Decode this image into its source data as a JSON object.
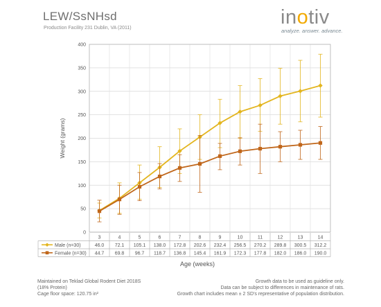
{
  "header": {
    "title": "LEW/SsNHsd",
    "subtitle": "Production Facility 231 Dublin, VA (2011)"
  },
  "logo": {
    "wordmark_prefix": "in",
    "wordmark_accent": "o",
    "wordmark_suffix": "tiv",
    "tagline": "analyze. answer. advance.",
    "accent_color": "#f2a900"
  },
  "footer": {
    "left_line1": "Maintained on Teklad Global Rodent Diet 2018S",
    "left_line2": "(18% Protein)",
    "left_line3": "Cage floor space: 120.75 in²",
    "right_line1": "Growth data to be used as guideline only.",
    "right_line2": "Data can be subject to differences in maintenance of rats.",
    "right_line3": "Growth chart includes mean ± 2 SD's representative of population distribution."
  },
  "chart_data": {
    "type": "line",
    "title": "",
    "xlabel": "Age (weeks)",
    "ylabel": "Weight (grams)",
    "ylim": [
      0,
      400
    ],
    "yticks": [
      0,
      50,
      100,
      150,
      200,
      250,
      300,
      350,
      400
    ],
    "grid": true,
    "legend": "table-below",
    "categories": [
      "3",
      "4",
      "5",
      "6",
      "7",
      "8",
      "9",
      "10",
      "11",
      "12",
      "13",
      "14"
    ],
    "series": [
      {
        "name": "Male (n=30)",
        "color": "#e3b51e",
        "marker": "diamond",
        "values": [
          46.0,
          72.1,
          105.1,
          138.0,
          172.8,
          202.6,
          232.4,
          256.5,
          270.2,
          289.8,
          300.5,
          312.2
        ],
        "labels": [
          "46.0",
          "72.1",
          "105.1",
          "138.0",
          "172.8",
          "202.6",
          "232.4",
          "256.5",
          "270.2",
          "289.8",
          "300.5",
          "312.2"
        ],
        "error_low": [
          30,
          40,
          70,
          95,
          125,
          155,
          180,
          200,
          215,
          230,
          235,
          245
        ],
        "error_high": [
          62,
          105,
          143,
          182,
          220,
          250,
          283,
          312,
          327,
          349,
          366,
          379
        ]
      },
      {
        "name": "Female (n=30)",
        "color": "#c0661a",
        "marker": "square",
        "values": [
          44.7,
          69.8,
          96.7,
          118.7,
          136.8,
          145.4,
          161.9,
          172.3,
          177.8,
          182.0,
          186.0,
          190.0
        ],
        "labels": [
          "44.7",
          "69.8",
          "96.7",
          "118.7",
          "136.8",
          "145.4",
          "161.9",
          "172.3",
          "177.8",
          "182.0",
          "186.0",
          "190.0"
        ],
        "error_low": [
          22,
          38,
          67,
          92,
          108,
          85,
          133,
          143,
          125,
          150,
          155,
          155
        ],
        "error_high": [
          68,
          100,
          127,
          146,
          165,
          206,
          189,
          201,
          230,
          214,
          217,
          225
        ]
      }
    ]
  }
}
